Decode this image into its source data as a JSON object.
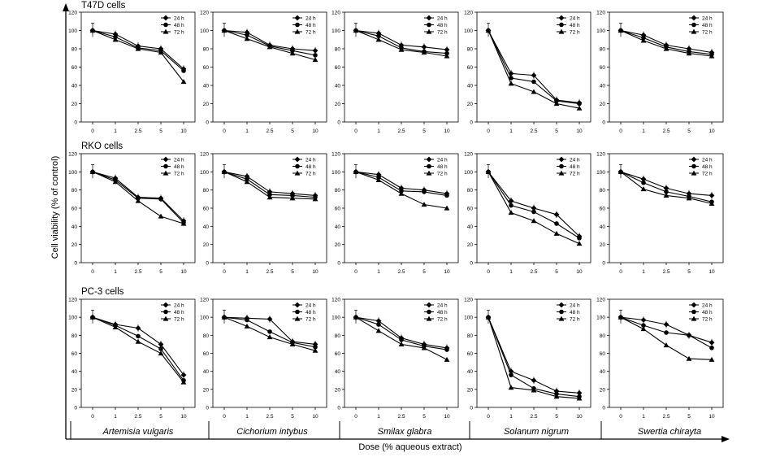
{
  "figure": {
    "y_axis_label": "Cell viability (% of control)",
    "x_axis_label": "Dose (% aqueous extract)",
    "row_labels": [
      "T47D cells",
      "RKO cells",
      "PC-3 cells"
    ],
    "column_labels": [
      "Artemisia vulgaris",
      "Cichorium intybus",
      "Smilax glabra",
      "Solanum nigrum",
      "Swertia chirayta"
    ],
    "legend_entries": [
      "24 h",
      "48 h",
      "72 h"
    ],
    "marker_shapes": [
      "diamond",
      "circle",
      "triangle"
    ],
    "colors": {
      "background": "#ffffff",
      "line": "#000000",
      "frame": "#000000",
      "grid": "#000000"
    }
  },
  "chart_data": [
    {
      "type": "line",
      "title": "",
      "cell_line": "T47D cells",
      "plant": "Artemisia vulgaris",
      "categories": [
        "0",
        "1",
        "2.5",
        "5",
        "10"
      ],
      "ylim": [
        0,
        120
      ],
      "yticks": [
        0,
        20,
        40,
        60,
        80,
        100,
        120
      ],
      "legend_position": "top-right",
      "series": [
        {
          "name": "24 h",
          "values": [
            100,
            96,
            83,
            80,
            58
          ]
        },
        {
          "name": "48 h",
          "values": [
            100,
            93,
            81,
            78,
            56
          ]
        },
        {
          "name": "72 h",
          "values": [
            100,
            90,
            80,
            76,
            44
          ]
        }
      ]
    },
    {
      "type": "line",
      "title": "",
      "cell_line": "T47D cells",
      "plant": "Cichorium intybus",
      "categories": [
        "0",
        "1",
        "2.5",
        "5",
        "10"
      ],
      "ylim": [
        0,
        120
      ],
      "yticks": [
        0,
        20,
        40,
        60,
        80,
        100,
        120
      ],
      "legend_position": "top-right",
      "series": [
        {
          "name": "24 h",
          "values": [
            100,
            98,
            84,
            80,
            78
          ]
        },
        {
          "name": "48 h",
          "values": [
            100,
            95,
            83,
            78,
            73
          ]
        },
        {
          "name": "72 h",
          "values": [
            100,
            91,
            82,
            75,
            68
          ]
        }
      ]
    },
    {
      "type": "line",
      "title": "",
      "cell_line": "T47D cells",
      "plant": "Smilax glabra",
      "categories": [
        "0",
        "1",
        "2.5",
        "5",
        "10"
      ],
      "ylim": [
        0,
        120
      ],
      "yticks": [
        0,
        20,
        40,
        60,
        80,
        100,
        120
      ],
      "legend_position": "top-right",
      "series": [
        {
          "name": "24 h",
          "values": [
            100,
            97,
            84,
            82,
            79
          ]
        },
        {
          "name": "48 h",
          "values": [
            100,
            94,
            81,
            77,
            75
          ]
        },
        {
          "name": "72 h",
          "values": [
            100,
            90,
            79,
            76,
            72
          ]
        }
      ]
    },
    {
      "type": "line",
      "title": "",
      "cell_line": "T47D cells",
      "plant": "Solanum nigrum",
      "categories": [
        "0",
        "1",
        "2.5",
        "5",
        "10"
      ],
      "ylim": [
        0,
        120
      ],
      "yticks": [
        0,
        20,
        40,
        60,
        80,
        100,
        120
      ],
      "legend_position": "top-right",
      "series": [
        {
          "name": "24 h",
          "values": [
            100,
            53,
            51,
            24,
            21
          ]
        },
        {
          "name": "48 h",
          "values": [
            100,
            48,
            44,
            23,
            20
          ]
        },
        {
          "name": "72 h",
          "values": [
            100,
            42,
            33,
            20,
            15
          ]
        }
      ]
    },
    {
      "type": "line",
      "title": "",
      "cell_line": "T47D cells",
      "plant": "Swertia chirayta",
      "categories": [
        "0",
        "1",
        "2.5",
        "5",
        "10"
      ],
      "ylim": [
        0,
        120
      ],
      "yticks": [
        0,
        20,
        40,
        60,
        80,
        100,
        120
      ],
      "legend_position": "top-right",
      "series": [
        {
          "name": "24 h",
          "values": [
            100,
            95,
            84,
            80,
            76
          ]
        },
        {
          "name": "48 h",
          "values": [
            100,
            92,
            82,
            77,
            74
          ]
        },
        {
          "name": "72 h",
          "values": [
            100,
            89,
            80,
            75,
            72
          ]
        }
      ]
    },
    {
      "type": "line",
      "title": "",
      "cell_line": "RKO cells",
      "plant": "Artemisia vulgaris",
      "categories": [
        "0",
        "1",
        "2.5",
        "5",
        "10"
      ],
      "ylim": [
        0,
        120
      ],
      "yticks": [
        0,
        20,
        40,
        60,
        80,
        100,
        120
      ],
      "legend_position": "top-right",
      "series": [
        {
          "name": "24 h",
          "values": [
            100,
            93,
            72,
            71,
            46
          ]
        },
        {
          "name": "48 h",
          "values": [
            100,
            91,
            71,
            70,
            44
          ]
        },
        {
          "name": "72 h",
          "values": [
            100,
            89,
            68,
            51,
            43
          ]
        }
      ]
    },
    {
      "type": "line",
      "title": "",
      "cell_line": "RKO cells",
      "plant": "Cichorium intybus",
      "categories": [
        "0",
        "1",
        "2.5",
        "5",
        "10"
      ],
      "ylim": [
        0,
        120
      ],
      "yticks": [
        0,
        20,
        40,
        60,
        80,
        100,
        120
      ],
      "legend_position": "top-right",
      "series": [
        {
          "name": "24 h",
          "values": [
            100,
            95,
            78,
            76,
            74
          ]
        },
        {
          "name": "48 h",
          "values": [
            100,
            92,
            75,
            74,
            72
          ]
        },
        {
          "name": "72 h",
          "values": [
            100,
            89,
            72,
            71,
            70
          ]
        }
      ]
    },
    {
      "type": "line",
      "title": "",
      "cell_line": "RKO cells",
      "plant": "Smilax glabra",
      "categories": [
        "0",
        "1",
        "2.5",
        "5",
        "10"
      ],
      "ylim": [
        0,
        120
      ],
      "yticks": [
        0,
        20,
        40,
        60,
        80,
        100,
        120
      ],
      "legend_position": "top-right",
      "series": [
        {
          "name": "24 h",
          "values": [
            100,
            97,
            82,
            80,
            76
          ]
        },
        {
          "name": "48 h",
          "values": [
            100,
            94,
            79,
            78,
            74
          ]
        },
        {
          "name": "72 h",
          "values": [
            100,
            91,
            76,
            64,
            60
          ]
        }
      ]
    },
    {
      "type": "line",
      "title": "",
      "cell_line": "RKO cells",
      "plant": "Solanum nigrum",
      "categories": [
        "0",
        "1",
        "2.5",
        "5",
        "10"
      ],
      "ylim": [
        0,
        120
      ],
      "yticks": [
        0,
        20,
        40,
        60,
        80,
        100,
        120
      ],
      "legend_position": "top-right",
      "series": [
        {
          "name": "24 h",
          "values": [
            100,
            68,
            60,
            53,
            29
          ]
        },
        {
          "name": "48 h",
          "values": [
            100,
            63,
            56,
            43,
            27
          ]
        },
        {
          "name": "72 h",
          "values": [
            100,
            55,
            46,
            32,
            21
          ]
        }
      ]
    },
    {
      "type": "line",
      "title": "",
      "cell_line": "RKO cells",
      "plant": "Swertia chirayta",
      "categories": [
        "0",
        "1",
        "2.5",
        "5",
        "10"
      ],
      "ylim": [
        0,
        120
      ],
      "yticks": [
        0,
        20,
        40,
        60,
        80,
        100,
        120
      ],
      "legend_position": "top-right",
      "series": [
        {
          "name": "24 h",
          "values": [
            100,
            92,
            82,
            76,
            74
          ]
        },
        {
          "name": "48 h",
          "values": [
            100,
            88,
            78,
            73,
            67
          ]
        },
        {
          "name": "72 h",
          "values": [
            100,
            81,
            74,
            71,
            65
          ]
        }
      ]
    },
    {
      "type": "line",
      "title": "",
      "cell_line": "PC-3 cells",
      "plant": "Artemisia vulgaris",
      "categories": [
        "0",
        "1",
        "2.5",
        "5",
        "10"
      ],
      "ylim": [
        0,
        120
      ],
      "yticks": [
        0,
        20,
        40,
        60,
        80,
        100,
        120
      ],
      "legend_position": "top-right",
      "series": [
        {
          "name": "24 h",
          "values": [
            100,
            92,
            88,
            70,
            36
          ]
        },
        {
          "name": "48 h",
          "values": [
            100,
            91,
            79,
            65,
            30
          ]
        },
        {
          "name": "72 h",
          "values": [
            100,
            89,
            73,
            60,
            28
          ]
        }
      ]
    },
    {
      "type": "line",
      "title": "",
      "cell_line": "PC-3 cells",
      "plant": "Cichorium intybus",
      "categories": [
        "0",
        "1",
        "2.5",
        "5",
        "10"
      ],
      "ylim": [
        0,
        120
      ],
      "yticks": [
        0,
        20,
        40,
        60,
        80,
        100,
        120
      ],
      "legend_position": "top-right",
      "series": [
        {
          "name": "24 h",
          "values": [
            100,
            99,
            98,
            73,
            70
          ]
        },
        {
          "name": "48 h",
          "values": [
            100,
            97,
            84,
            72,
            67
          ]
        },
        {
          "name": "72 h",
          "values": [
            100,
            90,
            78,
            70,
            63
          ]
        }
      ]
    },
    {
      "type": "line",
      "title": "",
      "cell_line": "PC-3 cells",
      "plant": "Smilax glabra",
      "categories": [
        "0",
        "1",
        "2.5",
        "5",
        "10"
      ],
      "ylim": [
        0,
        120
      ],
      "yticks": [
        0,
        20,
        40,
        60,
        80,
        100,
        120
      ],
      "legend_position": "top-right",
      "series": [
        {
          "name": "24 h",
          "values": [
            100,
            96,
            77,
            70,
            66
          ]
        },
        {
          "name": "48 h",
          "values": [
            100,
            92,
            75,
            68,
            64
          ]
        },
        {
          "name": "72 h",
          "values": [
            100,
            85,
            70,
            66,
            53
          ]
        }
      ]
    },
    {
      "type": "line",
      "title": "",
      "cell_line": "PC-3 cells",
      "plant": "Solanum nigrum",
      "categories": [
        "0",
        "1",
        "2.5",
        "5",
        "10"
      ],
      "ylim": [
        0,
        120
      ],
      "yticks": [
        0,
        20,
        40,
        60,
        80,
        100,
        120
      ],
      "legend_position": "top-right",
      "series": [
        {
          "name": "24 h",
          "values": [
            100,
            40,
            30,
            18,
            16
          ]
        },
        {
          "name": "48 h",
          "values": [
            100,
            36,
            21,
            15,
            12
          ]
        },
        {
          "name": "72 h",
          "values": [
            100,
            22,
            19,
            12,
            10
          ]
        }
      ]
    },
    {
      "type": "line",
      "title": "",
      "cell_line": "PC-3 cells",
      "plant": "Swertia chirayta",
      "categories": [
        "0",
        "1",
        "2.5",
        "5",
        "10"
      ],
      "ylim": [
        0,
        120
      ],
      "yticks": [
        0,
        20,
        40,
        60,
        80,
        100,
        120
      ],
      "legend_position": "top-right",
      "series": [
        {
          "name": "24 h",
          "values": [
            100,
            97,
            92,
            80,
            72
          ]
        },
        {
          "name": "48 h",
          "values": [
            100,
            91,
            83,
            80,
            66
          ]
        },
        {
          "name": "72 h",
          "values": [
            100,
            87,
            69,
            54,
            53
          ]
        }
      ]
    }
  ]
}
